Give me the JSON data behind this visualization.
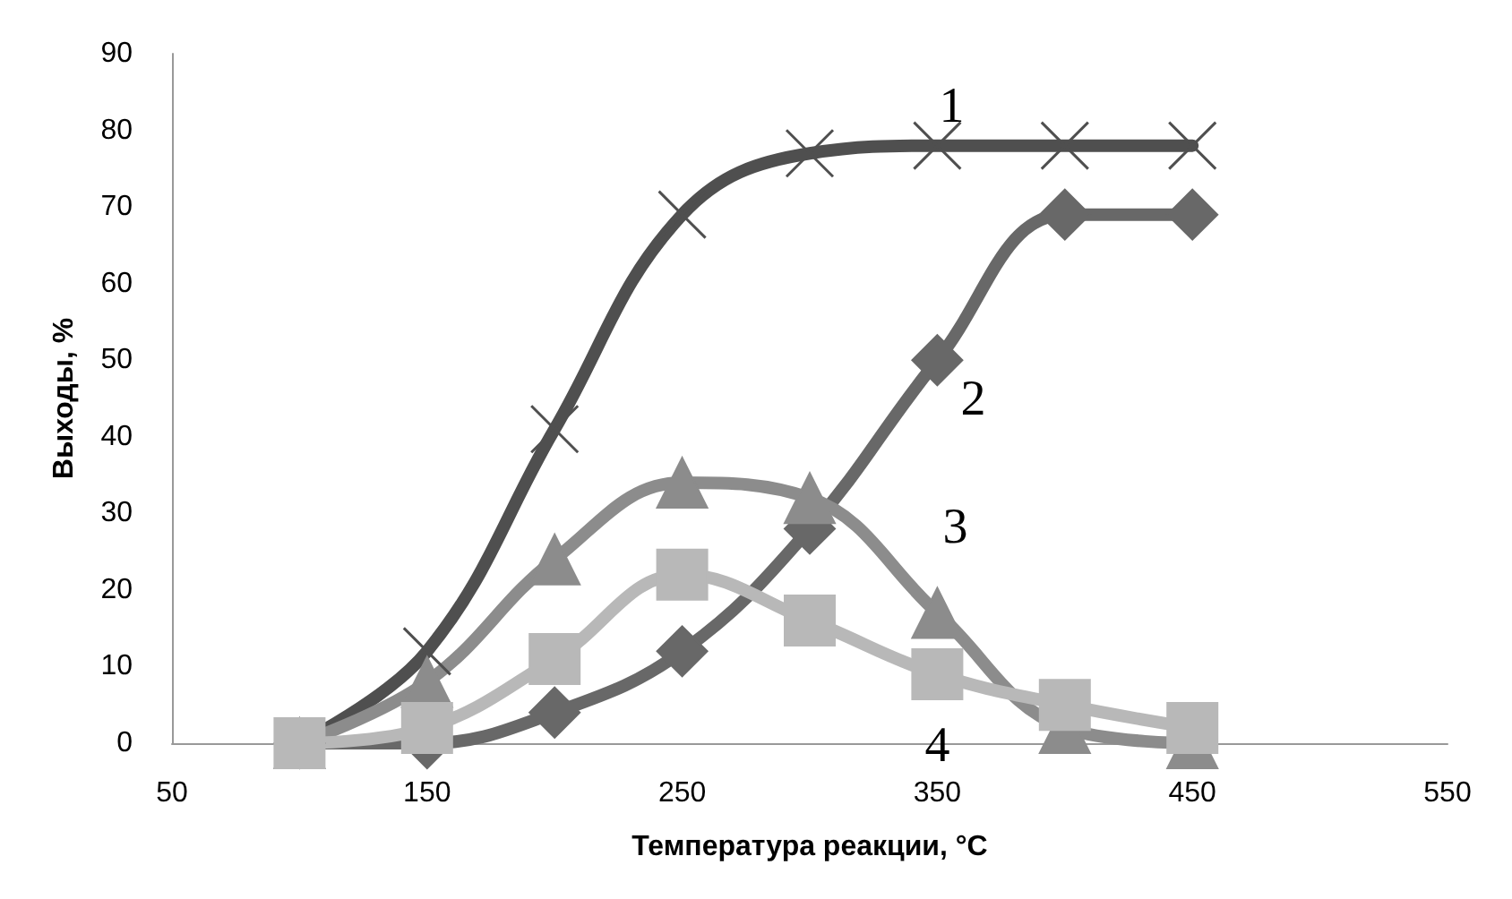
{
  "chart_data": {
    "type": "line",
    "xlabel": "Температура реакции, °C",
    "ylabel": "Выходы, %",
    "x": [
      100,
      150,
      200,
      250,
      300,
      350,
      400,
      450
    ],
    "xlim": [
      50,
      550
    ],
    "xticks": [
      50,
      150,
      250,
      350,
      450,
      550
    ],
    "ylim": [
      0,
      90
    ],
    "yticks": [
      0,
      10,
      20,
      30,
      40,
      50,
      60,
      70,
      80,
      90
    ],
    "grid": false,
    "series": [
      {
        "name": "1",
        "color": "#4f4f4f",
        "marker": "cross",
        "values": [
          0,
          12,
          41,
          69,
          77,
          78,
          78,
          78
        ]
      },
      {
        "name": "2",
        "color": "#686868",
        "marker": "diamond",
        "values": [
          0,
          0,
          4,
          12,
          28,
          50,
          69,
          69
        ]
      },
      {
        "name": "3",
        "color": "#8c8c8c",
        "marker": "triangle",
        "values": [
          0,
          8,
          24,
          34,
          32,
          17,
          2,
          0
        ]
      },
      {
        "name": "4",
        "color": "#b8b8b8",
        "marker": "square",
        "values": [
          0,
          2,
          11,
          22,
          16,
          9,
          5,
          2
        ]
      }
    ]
  }
}
